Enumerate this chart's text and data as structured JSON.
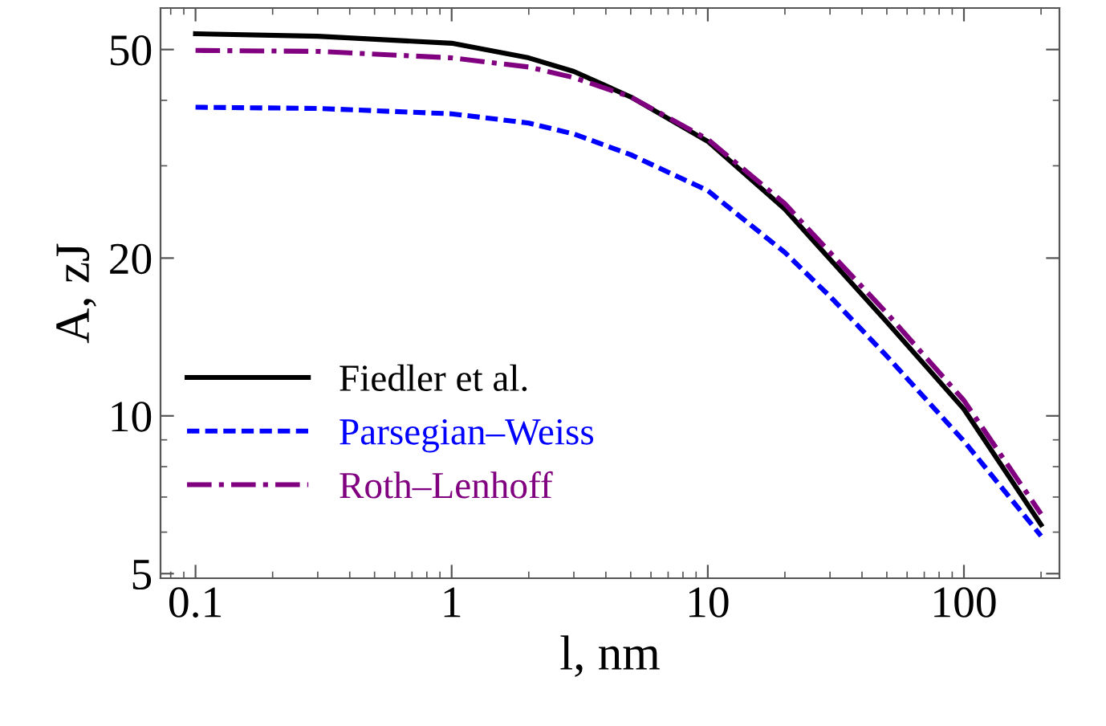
{
  "chart_data": {
    "type": "line",
    "xlabel": "l, nm",
    "ylabel": "A, zJ",
    "log": "xy",
    "x": [
      0.1,
      0.3,
      1,
      2,
      3,
      5,
      10,
      20,
      30,
      50,
      100,
      200
    ],
    "series": [
      {
        "name": "Fiedler et al.",
        "color": "#000000",
        "line_style": "solid",
        "values": [
          53.6,
          53.0,
          51.4,
          48.2,
          45.4,
          40.6,
          33.4,
          24.8,
          19.9,
          15.1,
          10.3,
          6.2
        ]
      },
      {
        "name": "Parsegian–Weiss",
        "color": "#0000ff",
        "line_style": "dashed",
        "values": [
          38.8,
          38.6,
          37.7,
          36.2,
          34.5,
          31.5,
          26.9,
          20.5,
          16.9,
          13.0,
          8.95,
          5.9
        ]
      },
      {
        "name": "Roth–Lenhoff",
        "color": "#800080",
        "line_style": "dashdot",
        "values": [
          49.8,
          49.6,
          48.2,
          46.3,
          44.2,
          40.6,
          33.7,
          25.4,
          20.5,
          15.7,
          10.7,
          6.5
        ]
      }
    ],
    "xlim": [
      0.073,
      236
    ],
    "ylim": [
      4.9,
      60
    ],
    "xticks": [
      0.1,
      1,
      10,
      100
    ],
    "yticks": [
      5,
      10,
      20,
      50
    ],
    "grid": false,
    "legend": "lower left",
    "marker": "none"
  }
}
